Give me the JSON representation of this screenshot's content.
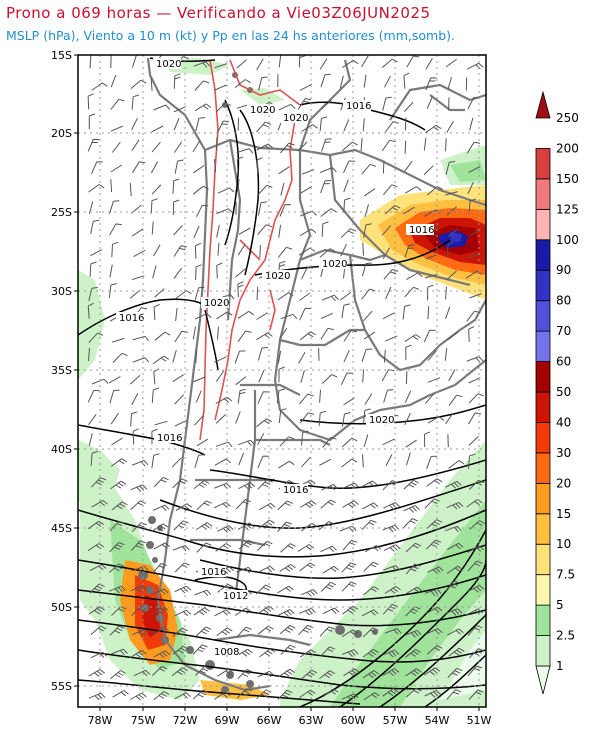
{
  "header": {
    "title": "Prono a 069 horas — Verificando a Vie03Z06JUN2025",
    "subtitle": "MSLP (hPa), Viento a 10 m (kt) y Pp en las 24 hs anteriores (mm,somb)."
  },
  "axes": {
    "lat_labels": [
      "15S",
      "20S",
      "25S",
      "30S",
      "35S",
      "40S",
      "45S",
      "50S",
      "55S"
    ],
    "lon_labels": [
      "78W",
      "75W",
      "72W",
      "69W",
      "66W",
      "63W",
      "60W",
      "57W",
      "54W",
      "51W"
    ]
  },
  "colors": {
    "border": "#7a7a7a",
    "isobar": "#000000",
    "terrain_contour": "#e05050",
    "grid": "#9a9a9a"
  },
  "isobar_labels": [
    "1020",
    "1020",
    "1020",
    "1016",
    "1016",
    "1020",
    "1020",
    "1016",
    "1020",
    "1016",
    "1016",
    "1020",
    "1016",
    "1012",
    "1008"
  ],
  "legend": {
    "levels": [
      "1",
      "2.5",
      "5",
      "7.5",
      "10",
      "15",
      "20",
      "30",
      "40",
      "50",
      "60",
      "70",
      "80",
      "90",
      "100",
      "125",
      "150",
      "200",
      "250"
    ],
    "colors": [
      "#ecfdec",
      "#cdf2c8",
      "#a0e39a",
      "#fff6b0",
      "#ffe27a",
      "#ffbf40",
      "#ff9b1e",
      "#ff6a12",
      "#f03a0a",
      "#cc1505",
      "#a30000",
      "#7474ea",
      "#5050d8",
      "#3232c4",
      "#1a1aa8",
      "#ffb3b3",
      "#f07a80",
      "#d84040",
      "#a00f14"
    ]
  }
}
